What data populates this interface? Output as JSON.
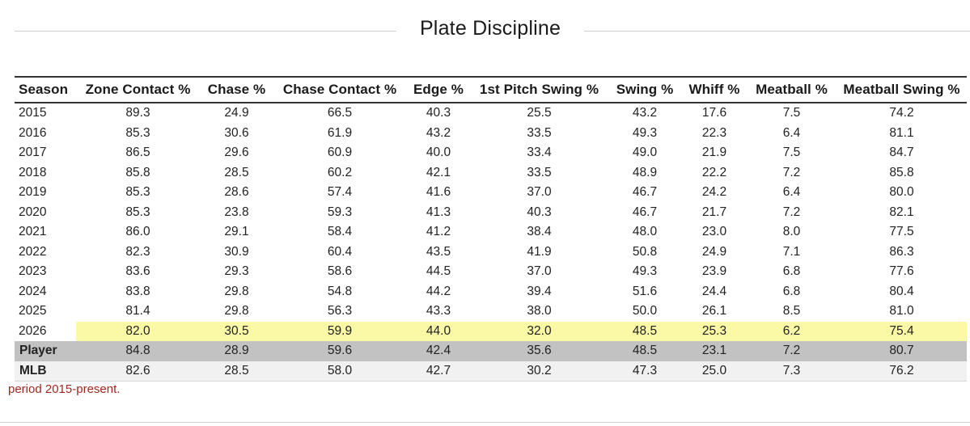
{
  "title": "Plate Discipline",
  "columns": [
    "Season",
    "Zone Contact %",
    "Chase %",
    "Chase Contact %",
    "Edge %",
    "1st Pitch Swing %",
    "Swing %",
    "Whiff %",
    "Meatball %",
    "Meatball Swing %"
  ],
  "rows": [
    [
      "2015",
      "89.3",
      "24.9",
      "66.5",
      "40.3",
      "25.5",
      "43.2",
      "17.6",
      "7.5",
      "74.2"
    ],
    [
      "2016",
      "85.3",
      "30.6",
      "61.9",
      "43.2",
      "33.5",
      "49.3",
      "22.3",
      "6.4",
      "81.1"
    ],
    [
      "2017",
      "86.5",
      "29.6",
      "60.9",
      "40.0",
      "33.4",
      "49.0",
      "21.9",
      "7.5",
      "84.7"
    ],
    [
      "2018",
      "85.8",
      "28.5",
      "60.2",
      "42.1",
      "33.5",
      "48.9",
      "22.2",
      "7.2",
      "85.8"
    ],
    [
      "2019",
      "85.3",
      "28.6",
      "57.4",
      "41.6",
      "37.0",
      "46.7",
      "24.2",
      "6.4",
      "80.0"
    ],
    [
      "2020",
      "85.3",
      "23.8",
      "59.3",
      "41.3",
      "40.3",
      "46.7",
      "21.7",
      "7.2",
      "82.1"
    ],
    [
      "2021",
      "86.0",
      "29.1",
      "58.4",
      "41.2",
      "38.4",
      "48.0",
      "23.0",
      "8.0",
      "77.5"
    ],
    [
      "2022",
      "82.3",
      "30.9",
      "60.4",
      "43.5",
      "41.9",
      "50.8",
      "24.9",
      "7.1",
      "86.3"
    ],
    [
      "2023",
      "83.6",
      "29.3",
      "58.6",
      "44.5",
      "37.0",
      "49.3",
      "23.9",
      "6.8",
      "77.6"
    ],
    [
      "2024",
      "83.8",
      "29.8",
      "54.8",
      "44.2",
      "39.4",
      "51.6",
      "24.4",
      "6.8",
      "80.4"
    ],
    [
      "2025",
      "81.4",
      "29.8",
      "56.3",
      "43.3",
      "38.0",
      "50.0",
      "26.1",
      "8.5",
      "81.0"
    ],
    [
      "2026",
      "82.0",
      "30.5",
      "59.9",
      "44.0",
      "32.0",
      "48.5",
      "25.3",
      "6.2",
      "75.4"
    ]
  ],
  "summary_rows": [
    [
      "Player",
      "84.8",
      "28.9",
      "59.6",
      "42.4",
      "35.6",
      "48.5",
      "23.1",
      "7.2",
      "80.7"
    ],
    [
      "MLB",
      "82.6",
      "28.5",
      "58.0",
      "42.7",
      "30.2",
      "47.3",
      "25.0",
      "7.3",
      "76.2"
    ]
  ],
  "highlight_row_index": 11,
  "footnote": "period 2015-present.",
  "colors": {
    "highlight": "#fbf9a6",
    "player_row": "#c2c2c2",
    "mlb_row": "#f1f1f1",
    "footnote": "#a3261f"
  }
}
